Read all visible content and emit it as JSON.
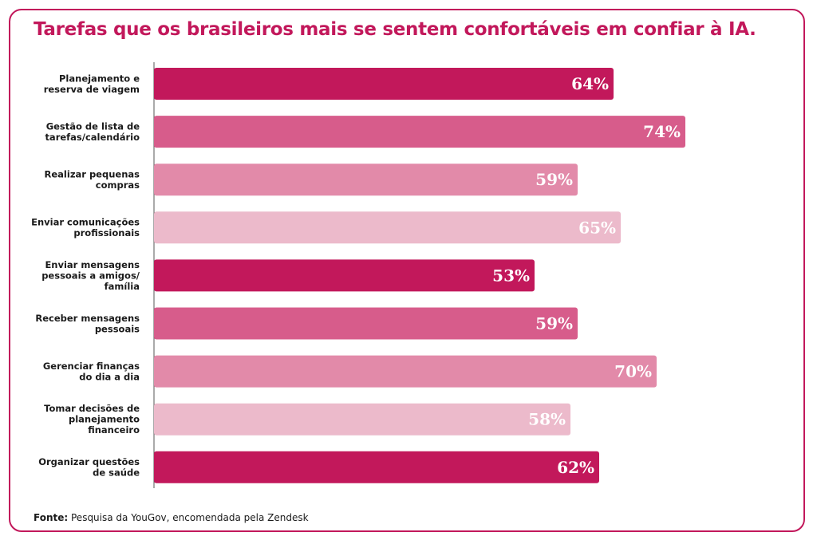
{
  "title": "Tarefas que os brasileiros mais se sentem confortáveis em confiar à IA.",
  "source": {
    "prefix": "Fonte:",
    "text": "Pesquisa da YouGov, encomendada pela Zendesk"
  },
  "colors": {
    "accent": "#c2185b",
    "palette": [
      "#c2185b",
      "#d75c8b",
      "#e28aa9",
      "#ecbacb"
    ]
  },
  "chart_data": {
    "type": "bar",
    "orientation": "horizontal",
    "title": "Tarefas que os brasileiros mais se sentem confortáveis em confiar à IA.",
    "categories": [
      [
        "Planejamento e",
        "reserva de viagem"
      ],
      [
        "Gestão de lista de",
        "tarefas/calendário"
      ],
      [
        "Realizar pequenas",
        "compras"
      ],
      [
        "Enviar comunicações",
        "profissionais"
      ],
      [
        "Enviar mensagens",
        "pessoais a amigos/",
        "família"
      ],
      [
        "Receber mensagens",
        "pessoais"
      ],
      [
        "Gerenciar finanças",
        "do dia a dia"
      ],
      [
        "Tomar decisões de",
        "planejamento",
        "financeiro"
      ],
      [
        "Organizar questões",
        "de saúde"
      ]
    ],
    "values": [
      64,
      74,
      59,
      65,
      53,
      59,
      70,
      58,
      62
    ],
    "value_labels": [
      "64%",
      "74%",
      "59%",
      "65%",
      "53%",
      "59%",
      "70%",
      "58%",
      "62%"
    ],
    "unit": "%",
    "xlim": [
      0,
      100
    ],
    "grid": false,
    "legend": "none"
  }
}
